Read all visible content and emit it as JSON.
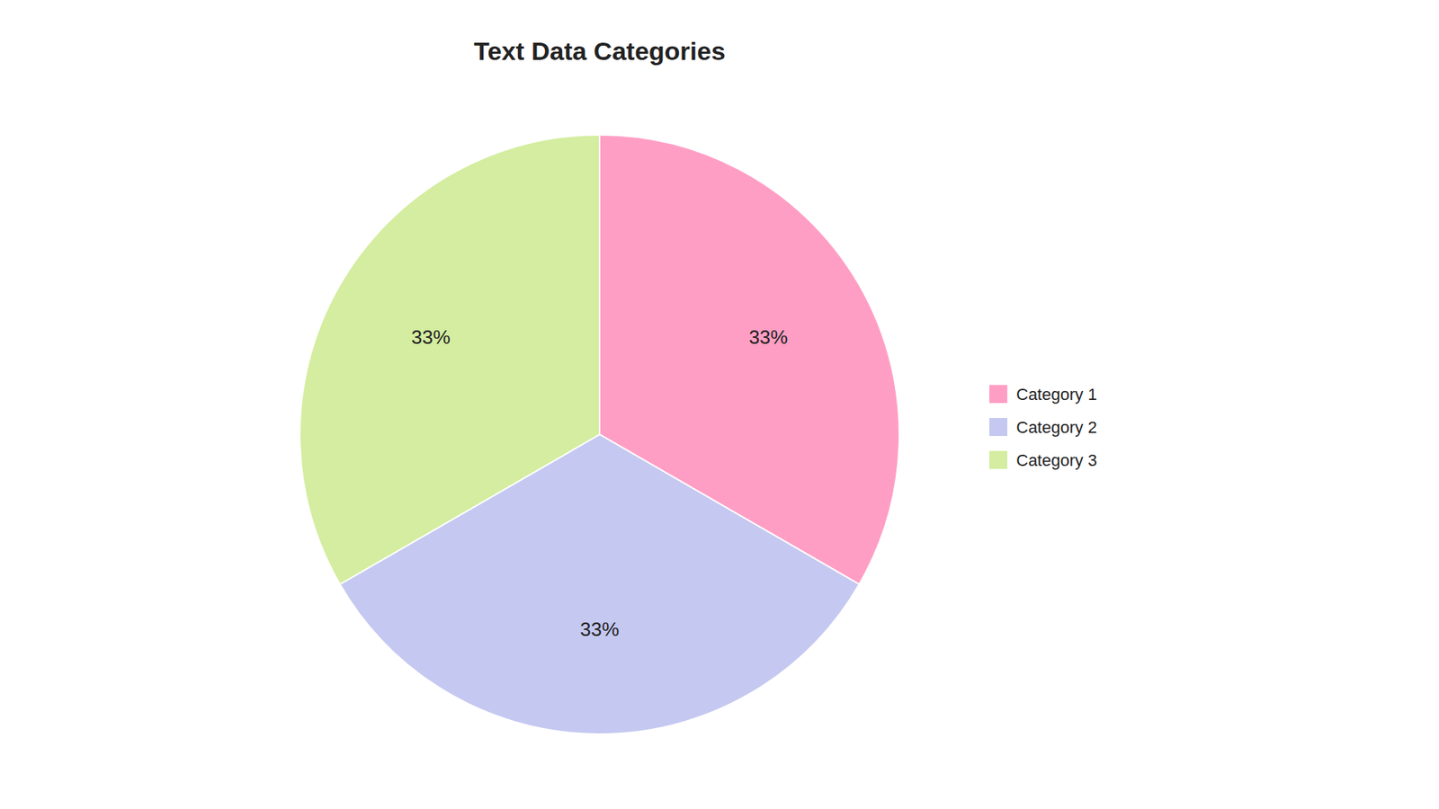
{
  "chart_data": {
    "type": "pie",
    "title": "Text Data Categories",
    "categories": [
      "Category 1",
      "Category 2",
      "Category 3"
    ],
    "values": [
      33,
      33,
      33
    ],
    "value_labels": [
      "33%",
      "33%",
      "33%"
    ],
    "colors": [
      "#FF9EC4",
      "#C5C8F0",
      "#D4EDA0"
    ],
    "data_labels": true,
    "legend": "right"
  }
}
